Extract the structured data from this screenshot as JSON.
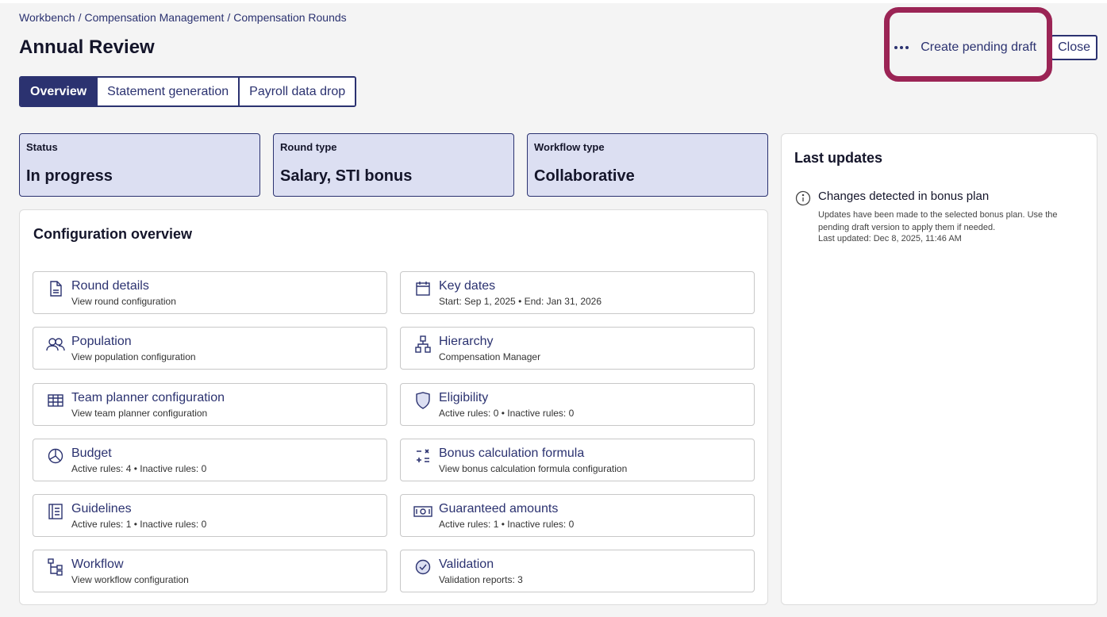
{
  "breadcrumb": [
    "Workbench",
    "Compensation Management",
    "Compensation Rounds"
  ],
  "breadcrumb_separator": "/",
  "page_title": "Annual Review",
  "header": {
    "more_icon": "more-dots-icon",
    "draft_label": "Create pending draft",
    "close_label": "Close",
    "highlight_color": "#9b2455"
  },
  "tabs": [
    {
      "label": "Overview",
      "active": true
    },
    {
      "label": "Statement generation",
      "active": false
    },
    {
      "label": "Payroll data drop",
      "active": false
    }
  ],
  "stats": [
    {
      "label": "Status",
      "value": "In progress"
    },
    {
      "label": "Round type",
      "value": "Salary, STI bonus"
    },
    {
      "label": "Workflow type",
      "value": "Collaborative"
    }
  ],
  "config": {
    "title": "Configuration overview",
    "items": [
      {
        "title": "Round details",
        "sub": "View round configuration",
        "icon": "document-icon"
      },
      {
        "title": "Key dates",
        "sub": "Start: Sep 1, 2025 • End: Jan 31, 2026",
        "icon": "calendar-icon"
      },
      {
        "title": "Population",
        "sub": "View population configuration",
        "icon": "people-icon"
      },
      {
        "title": "Hierarchy",
        "sub": "Compensation Manager",
        "icon": "hierarchy-icon"
      },
      {
        "title": "Team planner configuration",
        "sub": "View team planner configuration",
        "icon": "table-icon"
      },
      {
        "title": "Eligibility",
        "sub": "Active rules: 0 • Inactive rules: 0",
        "icon": "shield-icon"
      },
      {
        "title": "Budget",
        "sub": "Active rules: 4 • Inactive rules: 0",
        "icon": "pie-chart-icon"
      },
      {
        "title": "Bonus calculation formula",
        "sub": "View bonus calculation formula configuration",
        "icon": "calculator-icon"
      },
      {
        "title": "Guidelines",
        "sub": "Active rules: 1 • Inactive rules: 0",
        "icon": "guidelines-icon"
      },
      {
        "title": "Guaranteed amounts",
        "sub": "Active rules: 1 • Inactive rules: 0",
        "icon": "money-icon"
      },
      {
        "title": "Workflow",
        "sub": "View workflow configuration",
        "icon": "workflow-icon"
      },
      {
        "title": "Validation",
        "sub": "Validation reports: 3",
        "icon": "check-circle-icon"
      }
    ]
  },
  "updates": {
    "title": "Last updates",
    "items": [
      {
        "icon": "info-icon",
        "heading": "Changes detected in bonus plan",
        "description": "Updates have been made to the selected bonus plan. Use the pending draft version to apply them if needed.",
        "timestamp": "Last updated: Dec 8, 2025, 11:46 AM"
      }
    ]
  },
  "colors": {
    "primary": "#2b3270",
    "stat_card_bg": "#dcdff2",
    "page_bg": "#f4f4f4"
  }
}
